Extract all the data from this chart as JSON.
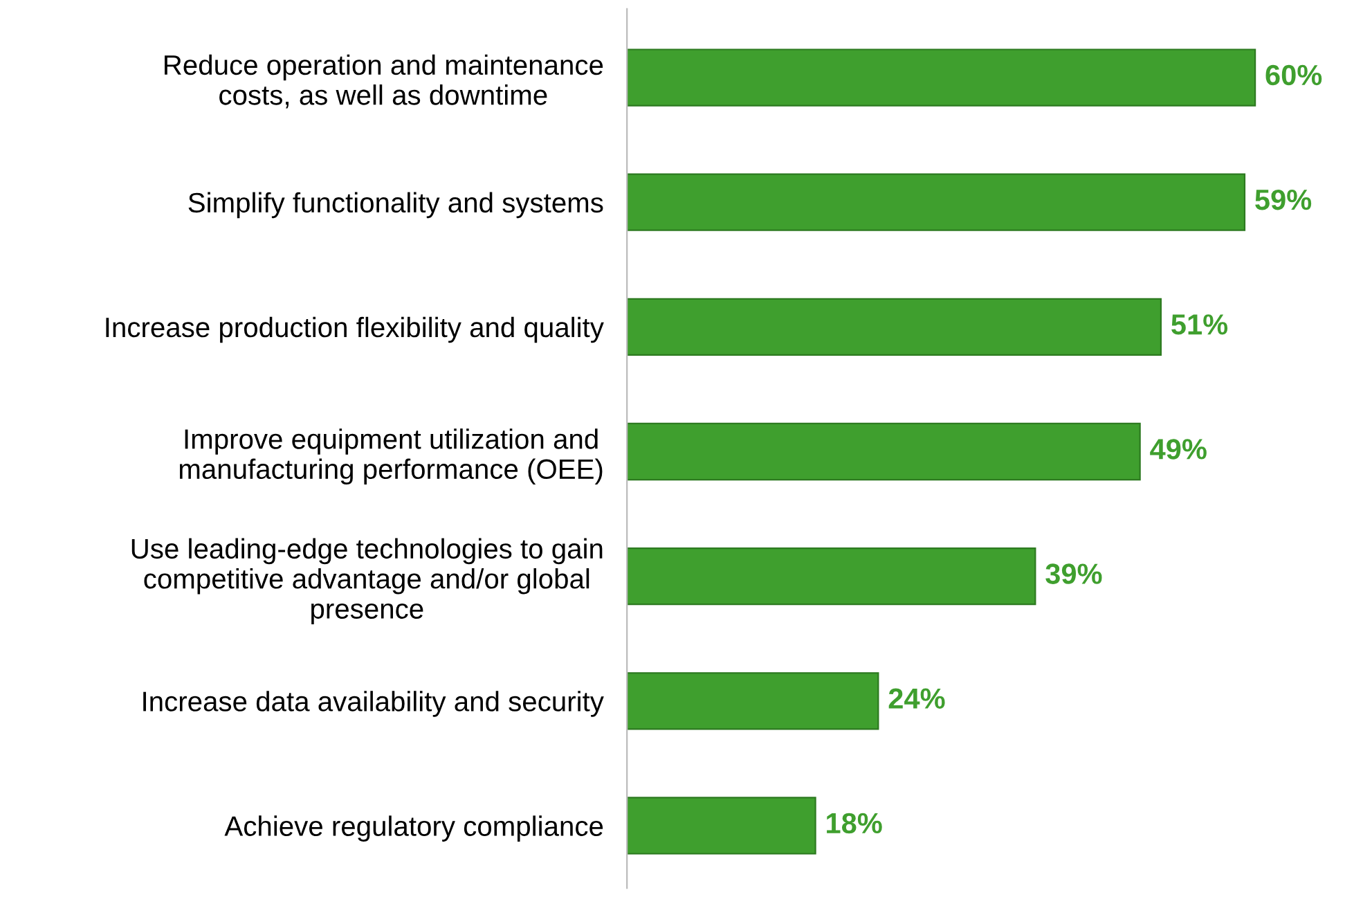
{
  "chart_data": {
    "type": "bar",
    "orientation": "horizontal",
    "categories": [
      "Reduce operation and maintenance\ncosts, as well as downtime",
      "Simplify functionality and systems",
      "Increase production flexibility and quality",
      "Improve equipment utilization and\nmanufacturing performance (OEE)",
      "Use leading-edge technologies to gain\ncompetitive advantage and/or global\npresence",
      "Increase data availability and security",
      "Achieve regulatory compliance"
    ],
    "series": [
      {
        "color": "#3f9f2e",
        "values": [
          60,
          59,
          51,
          49,
          39,
          24,
          18
        ],
        "value_labels": [
          "60%",
          "59%",
          "51%",
          "49%",
          "39%",
          "24%",
          "18%"
        ]
      }
    ],
    "tick_labels": "y",
    "grid": false,
    "legend": false
  }
}
